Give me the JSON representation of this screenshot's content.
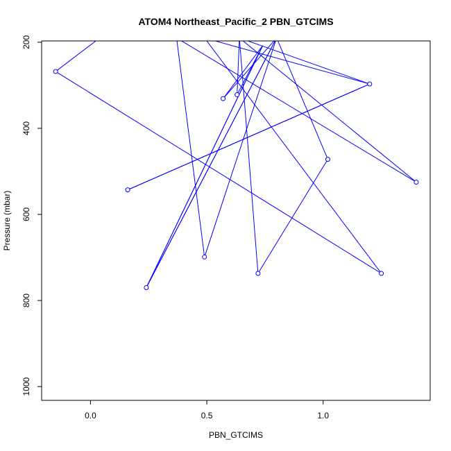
{
  "chart_data": {
    "type": "line",
    "title": "ATOM4 Northeast_Pacific_2 PBN_GTCIMS",
    "xlabel": "PBN_GTCIMS",
    "ylabel": "Pressure (mbar)",
    "xlim": [
      -0.21,
      1.46
    ],
    "ylim": [
      1032,
      197
    ],
    "y_reversed": true,
    "x_ticks": [
      0.0,
      0.5,
      1.0
    ],
    "x_tick_labels": [
      "0.0",
      "0.5",
      "1.0"
    ],
    "y_ticks": [
      200,
      400,
      600,
      800,
      1000
    ],
    "y_tick_labels": [
      "200",
      "400",
      "600",
      "800",
      "1000"
    ],
    "grid": false,
    "legend": "none",
    "series": [
      {
        "color": "#0000ff",
        "marker": "open-circle",
        "points": [
          {
            "x": 0.04,
            "y": 190
          },
          {
            "x": -0.15,
            "y": 268
          },
          {
            "x": 1.25,
            "y": 737
          },
          {
            "x": 0.49,
            "y": 190
          },
          {
            "x": 1.2,
            "y": 297
          },
          {
            "x": 0.16,
            "y": 543
          },
          {
            "x": 1.2,
            "y": 297
          },
          {
            "x": 0.64,
            "y": 190
          },
          {
            "x": 1.4,
            "y": 525
          },
          {
            "x": 0.37,
            "y": 190
          },
          {
            "x": 0.49,
            "y": 699
          },
          {
            "x": 0.8,
            "y": 190
          },
          {
            "x": 0.57,
            "y": 331
          },
          {
            "x": 0.74,
            "y": 208
          },
          {
            "x": 0.24,
            "y": 770
          },
          {
            "x": 0.74,
            "y": 208
          },
          {
            "x": 0.63,
            "y": 322
          },
          {
            "x": 0.64,
            "y": 190
          },
          {
            "x": 0.72,
            "y": 737
          },
          {
            "x": 1.02,
            "y": 472
          },
          {
            "x": 0.8,
            "y": 190
          },
          {
            "x": 0.24,
            "y": 770
          },
          {
            "x": 0.8,
            "y": 190
          },
          {
            "x": 1.35,
            "y": 190
          }
        ],
        "shown_markers": [
          {
            "x": -0.15,
            "y": 268
          },
          {
            "x": 1.25,
            "y": 737
          },
          {
            "x": 1.2,
            "y": 297
          },
          {
            "x": 0.16,
            "y": 543
          },
          {
            "x": 1.4,
            "y": 525
          },
          {
            "x": 0.49,
            "y": 699
          },
          {
            "x": 0.57,
            "y": 331
          },
          {
            "x": 0.63,
            "y": 322
          },
          {
            "x": 0.24,
            "y": 770
          },
          {
            "x": 0.72,
            "y": 737
          },
          {
            "x": 1.02,
            "y": 472
          }
        ]
      }
    ]
  }
}
